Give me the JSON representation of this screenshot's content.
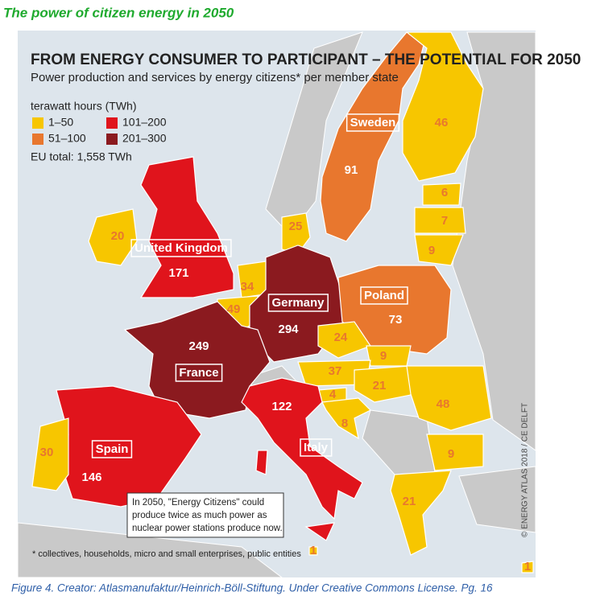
{
  "header": {
    "title": "The power of citizen energy in 2050"
  },
  "map": {
    "title": "FROM ENERGY CONSUMER TO PARTICIPANT – THE POTENTIAL FOR 2050",
    "subtitle": "Power production and services by energy citizens* per member state",
    "legend": {
      "title": "terawatt hours (TWh)",
      "items": [
        {
          "label": "1–50",
          "color": "#f7c600"
        },
        {
          "label": "101–200",
          "color": "#e0141c"
        },
        {
          "label": "51–100",
          "color": "#e8772e"
        },
        {
          "label": "201–300",
          "color": "#8b1a1f"
        }
      ],
      "total": "EU total: 1,558 TWh"
    },
    "regions": [
      {
        "label": "Sweden",
        "value": 91,
        "color": "#e8772e"
      },
      {
        "value": 46,
        "color": "#f7c600"
      },
      {
        "value": 6,
        "color": "#f7c600"
      },
      {
        "value": 7,
        "color": "#f7c600"
      },
      {
        "value": 9,
        "color": "#f7c600"
      },
      {
        "label": "United Kingdom",
        "value": 171,
        "color": "#e0141c"
      },
      {
        "value": 20,
        "color": "#f7c600"
      },
      {
        "value": 25,
        "color": "#f7c600"
      },
      {
        "value": 34,
        "color": "#f7c600"
      },
      {
        "value": 49,
        "color": "#f7c600"
      },
      {
        "label": "Germany",
        "value": 294,
        "color": "#8b1a1f"
      },
      {
        "label": "France",
        "value": 249,
        "color": "#8b1a1f"
      },
      {
        "label": "Poland",
        "value": 73,
        "color": "#e8772e"
      },
      {
        "value": 24,
        "color": "#f7c600"
      },
      {
        "value": 9,
        "color": "#f7c600"
      },
      {
        "value": 37,
        "color": "#f7c600"
      },
      {
        "value": 21,
        "color": "#f7c600"
      },
      {
        "value": 4,
        "color": "#f7c600"
      },
      {
        "value": 8,
        "color": "#f7c600"
      },
      {
        "value": 48,
        "color": "#f7c600"
      },
      {
        "value": 9,
        "color": "#f7c600"
      },
      {
        "value": 21,
        "color": "#f7c600"
      },
      {
        "label": "Italy",
        "value": 122,
        "color": "#e0141c"
      },
      {
        "label": "Spain",
        "value": 146,
        "color": "#e0141c"
      },
      {
        "value": 30,
        "color": "#f7c600"
      },
      {
        "value": 1,
        "color": "#f7c600"
      },
      {
        "value": 1,
        "color": "#f7c600"
      }
    ],
    "note": [
      "In 2050, \"Energy Citizens\" could",
      "produce twice as much power as",
      "nuclear power stations produce now."
    ],
    "footnote": "* collectives, households, micro and small enterprises, public entities",
    "credit": "© ENERGY ATLAS 2018 / CE DELFT"
  },
  "caption": "Figure 4. Creator: Atlasmanufaktur/Heinrich-Böll-Stiftung. Under Creative Commons License. Pg. 16"
}
